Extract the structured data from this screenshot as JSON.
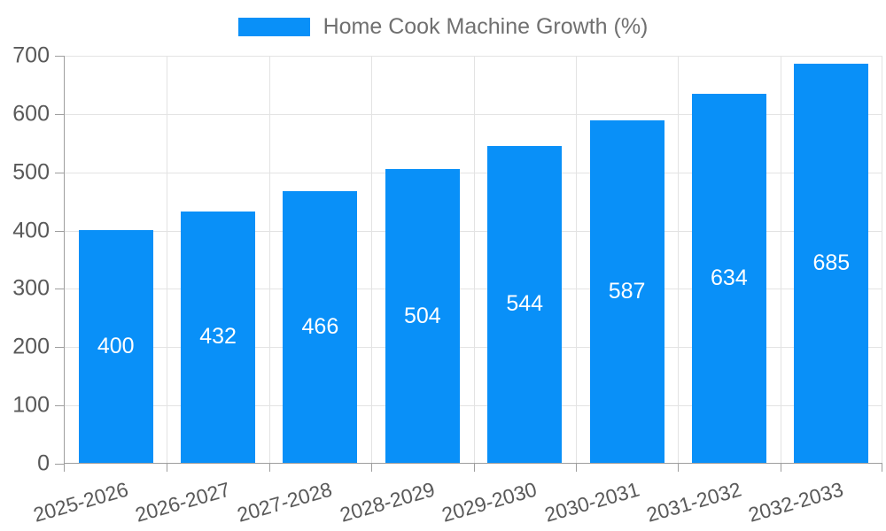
{
  "chart_data": {
    "type": "bar",
    "title": "Home Cook Machine Growth (%)",
    "categories": [
      "2025-2026",
      "2026-2027",
      "2027-2028",
      "2028-2029",
      "2029-2030",
      "2030-2031",
      "2031-2032",
      "2032-2033"
    ],
    "series": [
      {
        "name": "Home Cook Machine Growth (%)",
        "values": [
          400,
          432,
          466,
          504,
          544,
          587,
          634,
          685
        ]
      }
    ],
    "xlabel": "",
    "ylabel": "",
    "ylim": [
      0,
      700
    ],
    "y_ticks": [
      0,
      100,
      200,
      300,
      400,
      500,
      600,
      700
    ],
    "grid": true,
    "legend_position": "top",
    "value_labels": "inside-center"
  },
  "legend": {
    "label": "Home Cook Machine Growth (%)"
  },
  "colors": {
    "bar": "#0990f8",
    "axis": "#9e9e9e",
    "grid": "#e3e3e3",
    "tick_text": "#595959",
    "legend_text": "#707070",
    "value_text": "#ffffff",
    "background": "#ffffff"
  }
}
